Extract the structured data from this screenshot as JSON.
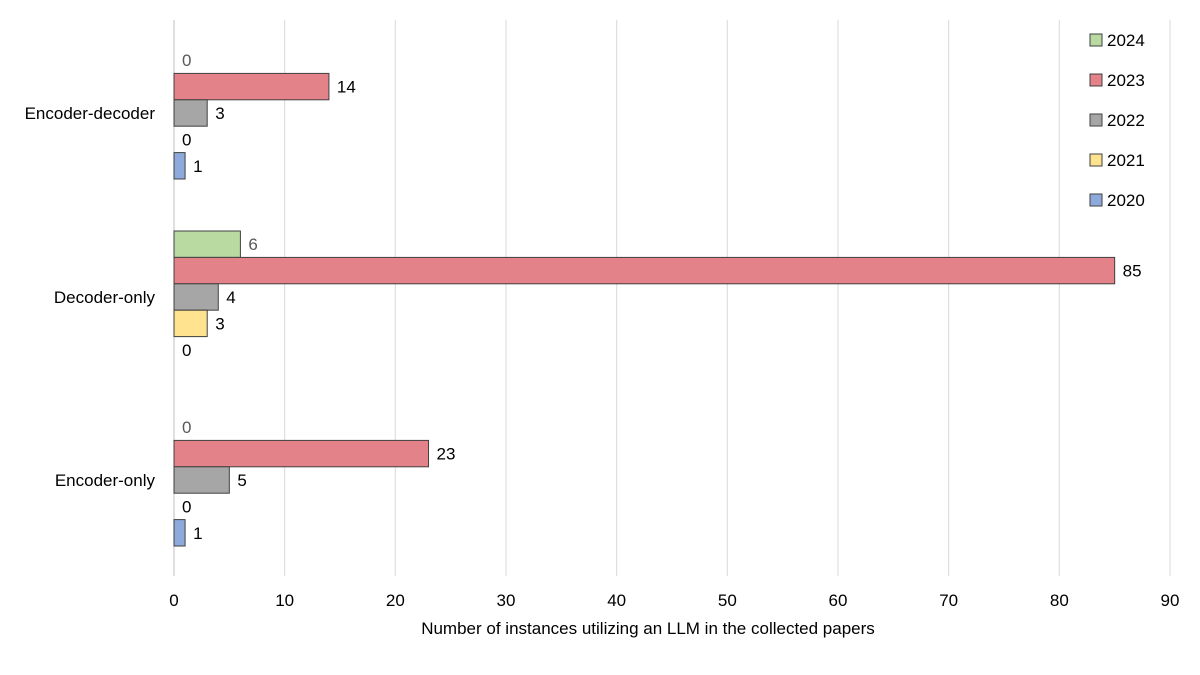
{
  "chart_data": {
    "type": "bar",
    "orientation": "horizontal",
    "categories": [
      "Encoder-decoder",
      "Decoder-only",
      "Encoder-only"
    ],
    "series": [
      {
        "name": "2024",
        "color": "#b9dba2",
        "values": [
          0,
          6,
          0
        ]
      },
      {
        "name": "2023",
        "color": "#e48289",
        "values": [
          14,
          85,
          23
        ]
      },
      {
        "name": "2022",
        "color": "#a6a6a6",
        "values": [
          3,
          4,
          5
        ]
      },
      {
        "name": "2021",
        "color": "#ffe38f",
        "values": [
          0,
          3,
          0
        ]
      },
      {
        "name": "2020",
        "color": "#8eaadc",
        "values": [
          1,
          0,
          1
        ]
      }
    ],
    "xlabel": "Number of instances utilizing an LLM in the collected papers",
    "ylabel": "",
    "xlim": [
      0,
      90
    ],
    "x_ticks": [
      "0",
      "10",
      "20",
      "30",
      "40",
      "50",
      "60",
      "70",
      "80",
      "90"
    ],
    "grid": "vertical",
    "legend": "top-right",
    "data_labels": true
  }
}
